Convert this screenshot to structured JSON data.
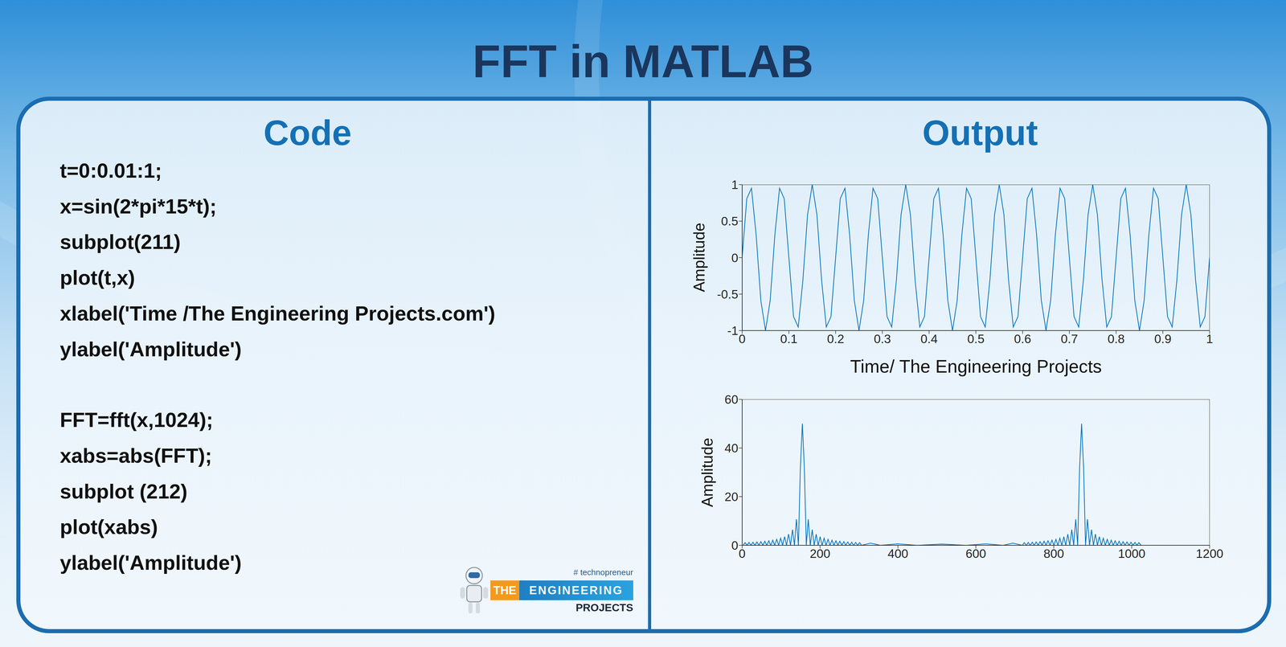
{
  "title": "FFT in MATLAB",
  "code": {
    "heading": "Code",
    "blocks": [
      [
        "t=0:0.01:1;",
        "x=sin(2*pi*15*t);",
        "subplot(211)",
        "plot(t,x)",
        "xlabel('Time /The Engineering Projects.com')",
        "ylabel('Amplitude')"
      ],
      [
        "FFT=fft(x,1024);",
        "xabs=abs(FFT);",
        "subplot (212)",
        "plot(xabs)",
        "ylabel('Amplitude')"
      ]
    ]
  },
  "output": {
    "heading": "Output"
  },
  "logo": {
    "tagline": "# technopreneur",
    "the": "THE",
    "name": "ENGINEERING",
    "sub": "PROJECTS"
  },
  "chart_data": [
    {
      "type": "line",
      "xlabel": "Time/ The Engineering Projects",
      "ylabel": "Amplitude",
      "color": "#0072bd",
      "grid": false,
      "xlim": [
        0,
        1
      ],
      "xticks": [
        0,
        0.1,
        0.2,
        0.3,
        0.4,
        0.5,
        0.6,
        0.7,
        0.8,
        0.9,
        1
      ],
      "ylim": [
        -1,
        1
      ],
      "yticks": [
        -1,
        -0.5,
        0,
        0.5,
        1
      ],
      "x": [
        0,
        0.01,
        0.02,
        0.03,
        0.04,
        0.05,
        0.06,
        0.07,
        0.08,
        0.09,
        0.1,
        0.11,
        0.12,
        0.13,
        0.14,
        0.15,
        0.16,
        0.17,
        0.18,
        0.19,
        0.2,
        0.21,
        0.22,
        0.23,
        0.24,
        0.25,
        0.26,
        0.27,
        0.28,
        0.29,
        0.3,
        0.31,
        0.32,
        0.33,
        0.34,
        0.35,
        0.36,
        0.37,
        0.38,
        0.39,
        0.4,
        0.41,
        0.42,
        0.43,
        0.44,
        0.45,
        0.46,
        0.47,
        0.48,
        0.49,
        0.5,
        0.51,
        0.52,
        0.53,
        0.54,
        0.55,
        0.56,
        0.57,
        0.58,
        0.59,
        0.6,
        0.61,
        0.62,
        0.63,
        0.64,
        0.65,
        0.66,
        0.67,
        0.68,
        0.69,
        0.7,
        0.71,
        0.72,
        0.73,
        0.74,
        0.75,
        0.76,
        0.77,
        0.78,
        0.79,
        0.8,
        0.81,
        0.82,
        0.83,
        0.84,
        0.85,
        0.86,
        0.87,
        0.88,
        0.89,
        0.9,
        0.91,
        0.92,
        0.93,
        0.94,
        0.95,
        0.96,
        0.97,
        0.98,
        0.99,
        1
      ],
      "values": [
        0,
        0.809,
        0.951,
        0.309,
        -0.588,
        -1,
        -0.588,
        0.309,
        0.951,
        0.809,
        0,
        -0.809,
        -0.951,
        -0.309,
        0.588,
        1,
        0.588,
        -0.309,
        -0.951,
        -0.809,
        0,
        0.809,
        0.951,
        0.309,
        -0.588,
        -1,
        -0.588,
        0.309,
        0.951,
        0.809,
        0,
        -0.809,
        -0.951,
        -0.309,
        0.588,
        1,
        0.588,
        -0.309,
        -0.951,
        -0.809,
        0,
        0.809,
        0.951,
        0.309,
        -0.588,
        -1,
        -0.588,
        0.309,
        0.951,
        0.809,
        0,
        -0.809,
        -0.951,
        -0.309,
        0.588,
        1,
        0.588,
        -0.309,
        -0.951,
        -0.809,
        0,
        0.809,
        0.951,
        0.309,
        -0.588,
        -1,
        -0.588,
        0.309,
        0.951,
        0.809,
        0,
        -0.809,
        -0.951,
        -0.309,
        0.588,
        1,
        0.588,
        -0.309,
        -0.951,
        -0.809,
        0,
        0.809,
        0.951,
        0.309,
        -0.588,
        -1,
        -0.588,
        0.309,
        0.951,
        0.809,
        0,
        -0.809,
        -0.951,
        -0.309,
        0.588,
        1,
        0.588,
        -0.309,
        -0.951,
        -0.809,
        0
      ]
    },
    {
      "type": "line",
      "ylabel": "Amplitude",
      "color": "#0072bd",
      "grid": false,
      "xlim": [
        0,
        1200
      ],
      "xticks": [
        0,
        200,
        400,
        600,
        800,
        1000,
        1200
      ],
      "ylim": [
        0,
        60
      ],
      "yticks": [
        0,
        20,
        40,
        60
      ],
      "x": [
        2.5,
        7.6,
        12.6,
        17.7,
        22.8,
        27.9,
        32.9,
        38,
        43.1,
        48.1,
        53.2,
        58.3,
        63.3,
        68.4,
        73.5,
        78.6,
        83.6,
        88.7,
        93.8,
        98.8,
        103.9,
        109,
        114,
        119.1,
        124.2,
        129.3,
        134.3,
        139.4,
        144.5,
        149.5,
        154.6,
        159.7,
        164.7,
        169.8,
        174.9,
        180,
        185,
        190.1,
        195.2,
        200.2,
        205.3,
        210.4,
        215.4,
        220.5,
        225.6,
        230.7,
        235.7,
        240.8,
        245.9,
        250.9,
        256,
        261.1,
        266.1,
        271.2,
        276.3,
        281.4,
        286.4,
        291.5,
        296.6,
        301.6,
        306.7,
        330,
        355,
        400,
        450,
        512,
        575,
        625,
        670,
        695,
        719.3,
        724.4,
        729.4,
        734.5,
        739.6,
        744.7,
        749.7,
        754.8,
        759.9,
        764.9,
        770,
        775.1,
        780.1,
        785.2,
        790.3,
        795.4,
        800.4,
        805.5,
        810.6,
        815.6,
        820.7,
        825.8,
        830.8,
        835.9,
        841,
        846.1,
        851.1,
        856.2,
        861.3,
        866.3,
        871.4,
        876.5,
        881.5,
        886.6,
        891.7,
        896.8,
        901.8,
        906.9,
        912,
        917,
        922.1,
        927.2,
        932.2,
        937.3,
        942.4,
        947.5,
        952.5,
        957.6,
        962.7,
        967.7,
        972.8,
        977.9,
        982.9,
        988,
        993.1,
        998.2,
        1003.2,
        1008.3,
        1013.4,
        1018.4,
        1024
      ],
      "values": [
        0,
        1.11,
        0,
        1.19,
        0,
        1.29,
        0,
        1.4,
        0,
        1.53,
        0,
        1.69,
        0,
        1.89,
        0,
        2.14,
        0,
        2.47,
        0,
        2.92,
        0,
        3.57,
        0,
        4.59,
        0,
        6.43,
        0,
        10.7,
        0,
        32,
        50,
        32,
        0,
        10.7,
        0,
        6.43,
        0,
        4.59,
        0,
        3.57,
        0,
        2.92,
        0,
        2.47,
        0,
        2.14,
        0,
        1.89,
        0,
        1.69,
        0,
        1.53,
        0,
        1.4,
        0,
        1.29,
        0,
        1.19,
        0,
        1.11,
        0,
        0.9,
        0,
        0.6,
        0,
        0.5,
        0,
        0.6,
        0,
        0.9,
        0,
        1.11,
        0,
        1.19,
        0,
        1.29,
        0,
        1.4,
        0,
        1.53,
        0,
        1.69,
        0,
        1.89,
        0,
        2.14,
        0,
        2.47,
        0,
        2.92,
        0,
        3.57,
        0,
        4.59,
        0,
        6.43,
        0,
        10.7,
        0,
        32,
        50,
        32,
        0,
        10.7,
        0,
        6.43,
        0,
        4.59,
        0,
        3.57,
        0,
        2.92,
        0,
        2.47,
        0,
        2.14,
        0,
        1.89,
        0,
        1.69,
        0,
        1.53,
        0,
        1.4,
        0,
        1.29,
        0,
        1.19,
        0,
        1.11,
        0
      ]
    }
  ]
}
